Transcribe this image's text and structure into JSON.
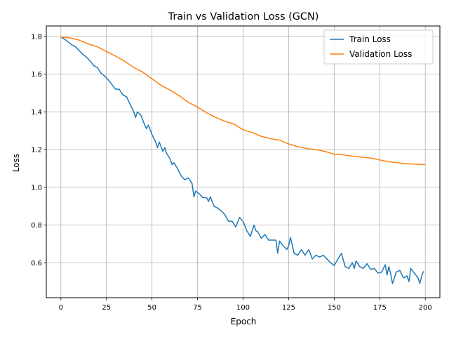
{
  "chart_data": {
    "type": "line",
    "title": "Train vs Validation Loss (GCN)",
    "xlabel": "Epoch",
    "ylabel": "Loss",
    "xlim": [
      -8,
      208
    ],
    "ylim": [
      0.415,
      1.855
    ],
    "xticks": [
      0,
      25,
      50,
      75,
      100,
      125,
      150,
      175,
      200
    ],
    "yticks": [
      0.6,
      0.8,
      1.0,
      1.2,
      1.4,
      1.6,
      1.8
    ],
    "grid": true,
    "legend": "top-right",
    "series": [
      {
        "name": "Train Loss",
        "color": "#1f77b4",
        "x": [
          0,
          2,
          4,
          6,
          8,
          10,
          12,
          14,
          16,
          18,
          20,
          22,
          24,
          26,
          28,
          30,
          32,
          34,
          36,
          38,
          40,
          41,
          42,
          44,
          46,
          47,
          48,
          50,
          52,
          53,
          54,
          56,
          57,
          58,
          60,
          61,
          62,
          64,
          66,
          68,
          70,
          72,
          73,
          74,
          76,
          78,
          80,
          81,
          82,
          84,
          86,
          88,
          90,
          92,
          94,
          96,
          98,
          100,
          102,
          104,
          106,
          107,
          108,
          110,
          112,
          114,
          116,
          118,
          119,
          120,
          122,
          124,
          125,
          126,
          128,
          130,
          132,
          134,
          136,
          138,
          140,
          142,
          144,
          146,
          148,
          150,
          152,
          154,
          156,
          158,
          160,
          161,
          162,
          164,
          166,
          168,
          170,
          172,
          174,
          176,
          178,
          179,
          180,
          181,
          182,
          184,
          186,
          188,
          190,
          191,
          192,
          194,
          196,
          197,
          198,
          199
        ],
        "y": [
          1.795,
          1.785,
          1.77,
          1.755,
          1.745,
          1.725,
          1.705,
          1.69,
          1.67,
          1.645,
          1.635,
          1.605,
          1.59,
          1.57,
          1.545,
          1.52,
          1.52,
          1.49,
          1.48,
          1.44,
          1.4,
          1.37,
          1.4,
          1.38,
          1.33,
          1.31,
          1.33,
          1.28,
          1.24,
          1.21,
          1.24,
          1.19,
          1.21,
          1.18,
          1.15,
          1.12,
          1.13,
          1.1,
          1.06,
          1.04,
          1.05,
          1.02,
          0.95,
          0.98,
          0.965,
          0.945,
          0.945,
          0.925,
          0.95,
          0.9,
          0.89,
          0.875,
          0.855,
          0.82,
          0.82,
          0.79,
          0.84,
          0.82,
          0.77,
          0.74,
          0.8,
          0.77,
          0.765,
          0.73,
          0.75,
          0.72,
          0.72,
          0.72,
          0.65,
          0.715,
          0.69,
          0.67,
          0.69,
          0.735,
          0.65,
          0.64,
          0.67,
          0.64,
          0.67,
          0.62,
          0.64,
          0.63,
          0.64,
          0.62,
          0.6,
          0.585,
          0.62,
          0.65,
          0.58,
          0.57,
          0.6,
          0.57,
          0.61,
          0.58,
          0.57,
          0.595,
          0.565,
          0.57,
          0.545,
          0.55,
          0.59,
          0.535,
          0.58,
          0.54,
          0.49,
          0.55,
          0.56,
          0.52,
          0.53,
          0.5,
          0.57,
          0.545,
          0.52,
          0.49,
          0.53,
          0.555
        ]
      },
      {
        "name": "Validation Loss",
        "color": "#ff7f0e",
        "x": [
          0,
          5,
          10,
          15,
          20,
          25,
          30,
          35,
          40,
          45,
          50,
          55,
          60,
          65,
          70,
          75,
          80,
          85,
          90,
          95,
          100,
          105,
          110,
          115,
          120,
          125,
          130,
          135,
          140,
          145,
          150,
          155,
          160,
          165,
          170,
          175,
          180,
          185,
          190,
          195,
          200
        ],
        "y": [
          1.795,
          1.792,
          1.78,
          1.76,
          1.745,
          1.72,
          1.695,
          1.668,
          1.635,
          1.61,
          1.575,
          1.54,
          1.515,
          1.485,
          1.45,
          1.425,
          1.395,
          1.37,
          1.35,
          1.335,
          1.305,
          1.29,
          1.27,
          1.258,
          1.25,
          1.23,
          1.215,
          1.205,
          1.2,
          1.19,
          1.175,
          1.172,
          1.165,
          1.16,
          1.155,
          1.145,
          1.135,
          1.13,
          1.125,
          1.122,
          1.12
        ]
      }
    ]
  }
}
